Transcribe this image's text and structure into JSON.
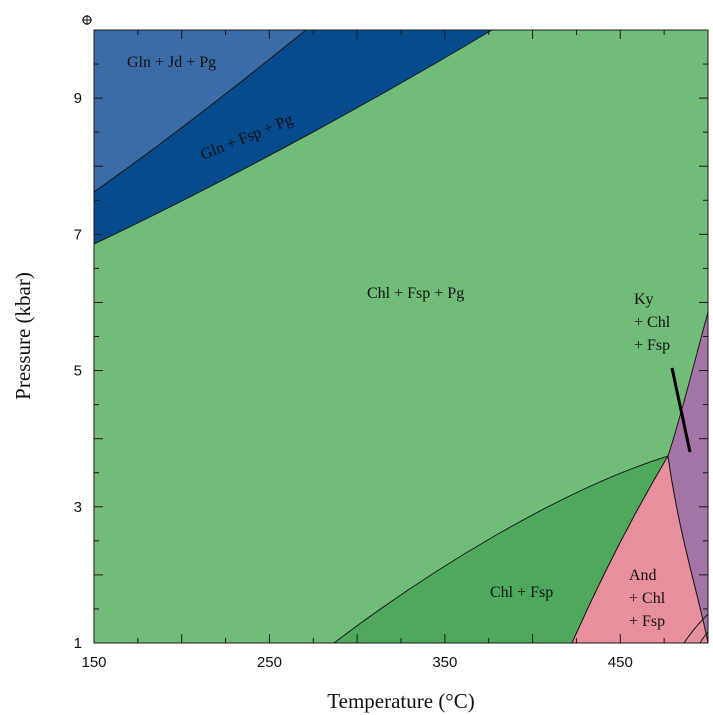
{
  "colors": {
    "gln_jd_pg": "#3b6ca8",
    "gln_fsp_pg": "#074b8f",
    "chl_fsp_pg": "#71bc79",
    "chl_fsp": "#4fa95c",
    "and_chl_fsp": "#e88f9d",
    "ky_chl_fsp": "#a574a6",
    "boundary": "#1a1a1a"
  },
  "diagram": {
    "corner_icon": "crosshair-icon",
    "fields": {
      "gln_jd_pg": "Gln + Jd + Pg",
      "gln_fsp_pg": "Gln + Fsp + Pg",
      "chl_fsp_pg": "Chl + Fsp + Pg",
      "chl_fsp": "Chl + Fsp",
      "and_chl_fsp": [
        "And",
        "+ Chl",
        "+ Fsp"
      ],
      "ky_chl_fsp": [
        "Ky",
        "+ Chl",
        "+ Fsp"
      ]
    },
    "x_axis": {
      "title": "Temperature (°C)",
      "range": [
        150,
        500
      ],
      "ticks": [
        "150",
        "250",
        "350",
        "450"
      ]
    },
    "y_axis": {
      "title": "Pressure (kbar)",
      "range": [
        1,
        10
      ],
      "ticks": [
        "1",
        "3",
        "5",
        "7",
        "9"
      ]
    }
  }
}
